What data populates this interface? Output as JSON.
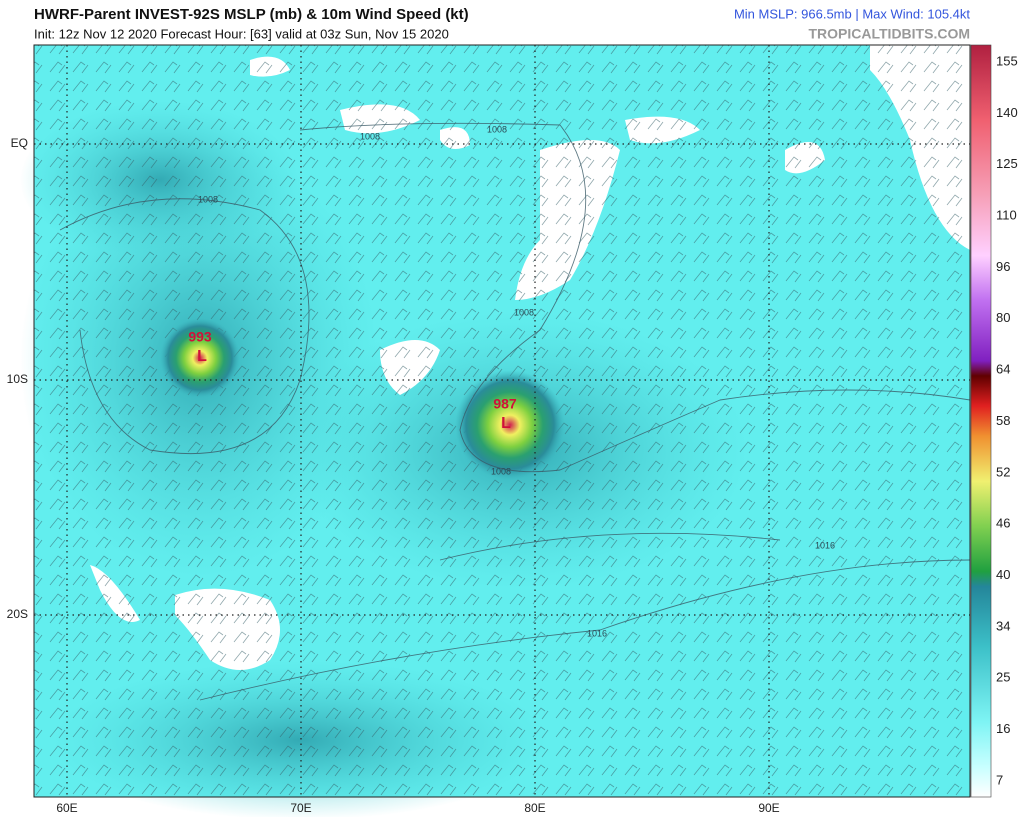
{
  "header": {
    "title": "HWRF-Parent INVEST-92S MSLP (mb) & 10m Wind Speed (kt)",
    "subtitle": "Init: 12z Nov 12 2020   Forecast Hour: [63]   valid at 03z Sun, Nov 15 2020",
    "stats": "Min MSLP: 966.5mb | Max Wind: 105.4kt",
    "site": "TROPICALTIDBITS.COM"
  },
  "map": {
    "lat_labels": [
      "EQ",
      "10S",
      "20S"
    ],
    "lon_labels": [
      "60E",
      "70E",
      "80E",
      "90E"
    ],
    "contour_labels": [
      "1008",
      "1008",
      "1008",
      "1008",
      "1008",
      "1016",
      "1016"
    ],
    "lows": [
      {
        "pressure": "993",
        "symbol": "L"
      },
      {
        "pressure": "987",
        "symbol": "L"
      }
    ]
  },
  "colorbar": {
    "labels": [
      155,
      140,
      125,
      110,
      96,
      80,
      64,
      58,
      52,
      46,
      40,
      34,
      25,
      16,
      7
    ]
  }
}
